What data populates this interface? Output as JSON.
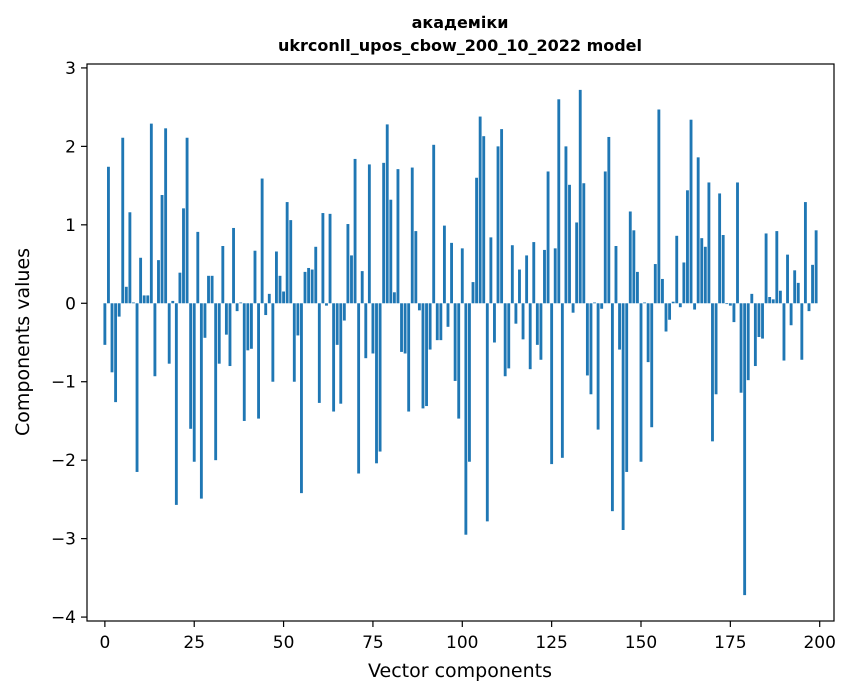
{
  "chart_data": {
    "type": "bar",
    "title_line1": "академіки",
    "title_line2": "ukrconll_upos_cbow_200_10_2022 model",
    "xlabel": "Vector components",
    "ylabel": "Components values",
    "xlim": [
      -5,
      204
    ],
    "ylim": [
      -4.05,
      3.05
    ],
    "xticks": [
      0,
      25,
      50,
      75,
      100,
      125,
      150,
      175,
      200
    ],
    "xtick_labels": [
      "0",
      "25",
      "50",
      "75",
      "100",
      "125",
      "150",
      "175",
      "200"
    ],
    "yticks": [
      -4,
      -3,
      -2,
      -1,
      0,
      1,
      2,
      3
    ],
    "ytick_labels": [
      "−4",
      "−3",
      "−2",
      "−1",
      "0",
      "1",
      "2",
      "3"
    ],
    "bar_color": "#1f77b4",
    "grid": false,
    "x": [
      0,
      1,
      2,
      3,
      4,
      5,
      6,
      7,
      8,
      9,
      10,
      11,
      12,
      13,
      14,
      15,
      16,
      17,
      18,
      19,
      20,
      21,
      22,
      23,
      24,
      25,
      26,
      27,
      28,
      29,
      30,
      31,
      32,
      33,
      34,
      35,
      36,
      37,
      38,
      39,
      40,
      41,
      42,
      43,
      44,
      45,
      46,
      47,
      48,
      49,
      50,
      51,
      52,
      53,
      54,
      55,
      56,
      57,
      58,
      59,
      60,
      61,
      62,
      63,
      64,
      65,
      66,
      67,
      68,
      69,
      70,
      71,
      72,
      73,
      74,
      75,
      76,
      77,
      78,
      79,
      80,
      81,
      82,
      83,
      84,
      85,
      86,
      87,
      88,
      89,
      90,
      91,
      92,
      93,
      94,
      95,
      96,
      97,
      98,
      99,
      100,
      101,
      102,
      103,
      104,
      105,
      106,
      107,
      108,
      109,
      110,
      111,
      112,
      113,
      114,
      115,
      116,
      117,
      118,
      119,
      120,
      121,
      122,
      123,
      124,
      125,
      126,
      127,
      128,
      129,
      130,
      131,
      132,
      133,
      134,
      135,
      136,
      137,
      138,
      139,
      140,
      141,
      142,
      143,
      144,
      145,
      146,
      147,
      148,
      149,
      150,
      151,
      152,
      153,
      154,
      155,
      156,
      157,
      158,
      159,
      160,
      161,
      162,
      163,
      164,
      165,
      166,
      167,
      168,
      169,
      170,
      171,
      172,
      173,
      174,
      175,
      176,
      177,
      178,
      179,
      180,
      181,
      182,
      183,
      184,
      185,
      186,
      187,
      188,
      189,
      190,
      191,
      192,
      193,
      194,
      195,
      196,
      197,
      198,
      199
    ],
    "values": [
      -0.53,
      1.74,
      -0.88,
      -1.26,
      -0.17,
      2.11,
      0.21,
      1.16,
      0.01,
      -2.15,
      0.58,
      0.1,
      0.1,
      2.29,
      -0.93,
      0.55,
      1.38,
      2.23,
      -0.77,
      0.03,
      -2.57,
      0.39,
      1.21,
      2.11,
      -1.6,
      -2.02,
      0.91,
      -2.49,
      -0.44,
      0.35,
      0.35,
      -2.0,
      -0.77,
      0.73,
      -0.4,
      -0.8,
      0.96,
      -0.1,
      0.01,
      -1.5,
      -0.6,
      -0.58,
      0.67,
      -1.47,
      1.59,
      -0.15,
      0.12,
      -1.0,
      0.66,
      0.35,
      0.15,
      1.29,
      1.06,
      -1.0,
      -0.41,
      -2.42,
      0.4,
      0.45,
      0.43,
      0.72,
      -1.27,
      1.15,
      -0.03,
      1.14,
      -1.38,
      -0.53,
      -1.28,
      -0.22,
      1.01,
      0.61,
      1.84,
      -2.17,
      0.41,
      -0.7,
      1.77,
      -0.64,
      -2.04,
      -1.89,
      1.79,
      2.28,
      1.32,
      0.14,
      1.71,
      -0.62,
      -0.64,
      -1.38,
      1.73,
      0.92,
      -0.09,
      -1.34,
      -1.31,
      -0.59,
      2.02,
      -0.47,
      -0.47,
      0.99,
      -0.3,
      0.77,
      -0.99,
      -1.47,
      0.7,
      -2.95,
      -2.02,
      0.27,
      1.6,
      2.38,
      2.13,
      -2.78,
      0.84,
      -0.5,
      2.0,
      2.22,
      -0.93,
      -0.83,
      0.74,
      -0.26,
      0.43,
      -0.46,
      0.61,
      -0.84,
      0.78,
      -0.53,
      -0.72,
      0.68,
      1.68,
      -2.05,
      0.7,
      2.6,
      -1.97,
      2.0,
      1.51,
      -0.12,
      1.03,
      2.72,
      1.53,
      -0.92,
      -1.16,
      0.01,
      -1.61,
      -0.07,
      1.68,
      2.12,
      -2.65,
      0.73,
      -0.59,
      -2.89,
      -2.15,
      1.17,
      0.93,
      0.4,
      -2.02,
      0.01,
      -0.75,
      -1.58,
      0.5,
      2.47,
      0.31,
      -0.36,
      -0.21,
      0.02,
      0.86,
      -0.05,
      0.52,
      1.44,
      2.34,
      -0.08,
      1.86,
      0.83,
      0.72,
      1.54,
      -1.76,
      -1.16,
      1.4,
      0.87,
      -0.01,
      -0.03,
      -0.24,
      1.54,
      -1.14,
      -3.72,
      -0.98,
      0.12,
      -0.8,
      -0.43,
      -0.45,
      0.89,
      0.08,
      0.05,
      0.92,
      0.16,
      -0.73,
      0.62,
      -0.28,
      0.42,
      0.26,
      -0.72,
      1.29,
      -0.1,
      0.49,
      0.93
    ]
  }
}
